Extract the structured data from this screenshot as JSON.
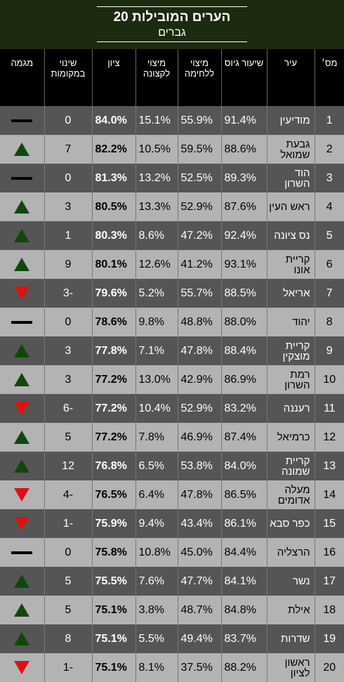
{
  "title": "20 הערים המובילות",
  "subtitle": "גברים",
  "headers": {
    "num": "מס׳",
    "city": "עיר",
    "gius": "שיעור גיוס",
    "kravi": "מיצוי ללחימה",
    "ktzuna": "מיצוי לקצונה",
    "score": "ציון",
    "change": "שינוי במקומות",
    "trend": "מגמה"
  },
  "rows": [
    {
      "num": "1",
      "city": "מודיעין",
      "gius": "91.4%",
      "kravi": "55.9%",
      "ktzuna": "15.1%",
      "score": "84.0%",
      "change": "0",
      "trend": "same"
    },
    {
      "num": "2",
      "city": "גבעת שמואל",
      "gius": "88.6%",
      "kravi": "59.5%",
      "ktzuna": "10.5%",
      "score": "82.2%",
      "change": "7",
      "trend": "up"
    },
    {
      "num": "3",
      "city": "הוד השרון",
      "gius": "89.3%",
      "kravi": "52.5%",
      "ktzuna": "13.2%",
      "score": "81.3%",
      "change": "0",
      "trend": "same"
    },
    {
      "num": "4",
      "city": "ראש העין",
      "gius": "87.6%",
      "kravi": "52.9%",
      "ktzuna": "13.3%",
      "score": "80.5%",
      "change": "3",
      "trend": "up"
    },
    {
      "num": "5",
      "city": "נס ציונה",
      "gius": "92.4%",
      "kravi": "47.2%",
      "ktzuna": "8.6%",
      "score": "80.3%",
      "change": "1",
      "trend": "up"
    },
    {
      "num": "6",
      "city": "קריית אונו",
      "gius": "93.1%",
      "kravi": "41.2%",
      "ktzuna": "12.6%",
      "score": "80.1%",
      "change": "9",
      "trend": "up"
    },
    {
      "num": "7",
      "city": "אריאל",
      "gius": "88.5%",
      "kravi": "55.7%",
      "ktzuna": "5.2%",
      "score": "79.6%",
      "change": "-3",
      "trend": "down"
    },
    {
      "num": "8",
      "city": "יהוד",
      "gius": "88.0%",
      "kravi": "48.8%",
      "ktzuna": "9.8%",
      "score": "78.6%",
      "change": "0",
      "trend": "same"
    },
    {
      "num": "9",
      "city": "קריית מוצקין",
      "gius": "88.4%",
      "kravi": "47.8%",
      "ktzuna": "7.1%",
      "score": "77.8%",
      "change": "3",
      "trend": "up"
    },
    {
      "num": "10",
      "city": "רמת השרון",
      "gius": "86.9%",
      "kravi": "42.9%",
      "ktzuna": "13.0%",
      "score": "77.2%",
      "change": "3",
      "trend": "up"
    },
    {
      "num": "11",
      "city": "רעננה",
      "gius": "83.2%",
      "kravi": "52.9%",
      "ktzuna": "10.4%",
      "score": "77.2%",
      "change": "-6",
      "trend": "down"
    },
    {
      "num": "12",
      "city": "כרמיאל",
      "gius": "87.4%",
      "kravi": "46.9%",
      "ktzuna": "7.8%",
      "score": "77.2%",
      "change": "5",
      "trend": "up"
    },
    {
      "num": "13",
      "city": "קריית שמונה",
      "gius": "84.0%",
      "kravi": "53.8%",
      "ktzuna": "6.5%",
      "score": "76.8%",
      "change": "12",
      "trend": "up"
    },
    {
      "num": "14",
      "city": "מעלה אדומים",
      "gius": "86.5%",
      "kravi": "47.8%",
      "ktzuna": "6.4%",
      "score": "76.5%",
      "change": "-4",
      "trend": "down"
    },
    {
      "num": "15",
      "city": "כפר סבא",
      "gius": "86.1%",
      "kravi": "43.4%",
      "ktzuna": "9.4%",
      "score": "75.9%",
      "change": "-1",
      "trend": "down"
    },
    {
      "num": "16",
      "city": "הרצליה",
      "gius": "84.4%",
      "kravi": "45.0%",
      "ktzuna": "10.8%",
      "score": "75.8%",
      "change": "0",
      "trend": "same"
    },
    {
      "num": "17",
      "city": "נשר",
      "gius": "84.1%",
      "kravi": "47.7%",
      "ktzuna": "7.6%",
      "score": "75.5%",
      "change": "5",
      "trend": "up"
    },
    {
      "num": "18",
      "city": "אילת",
      "gius": "84.8%",
      "kravi": "48.7%",
      "ktzuna": "3.8%",
      "score": "75.1%",
      "change": "5",
      "trend": "up"
    },
    {
      "num": "19",
      "city": "שדרות",
      "gius": "83.7%",
      "kravi": "49.4%",
      "ktzuna": "5.5%",
      "score": "75.1%",
      "change": "8",
      "trend": "up"
    },
    {
      "num": "20",
      "city": "ראשון לציון",
      "gius": "88.2%",
      "kravi": "37.5%",
      "ktzuna": "8.1%",
      "score": "75.1%",
      "change": "-1",
      "trend": "down"
    }
  ]
}
